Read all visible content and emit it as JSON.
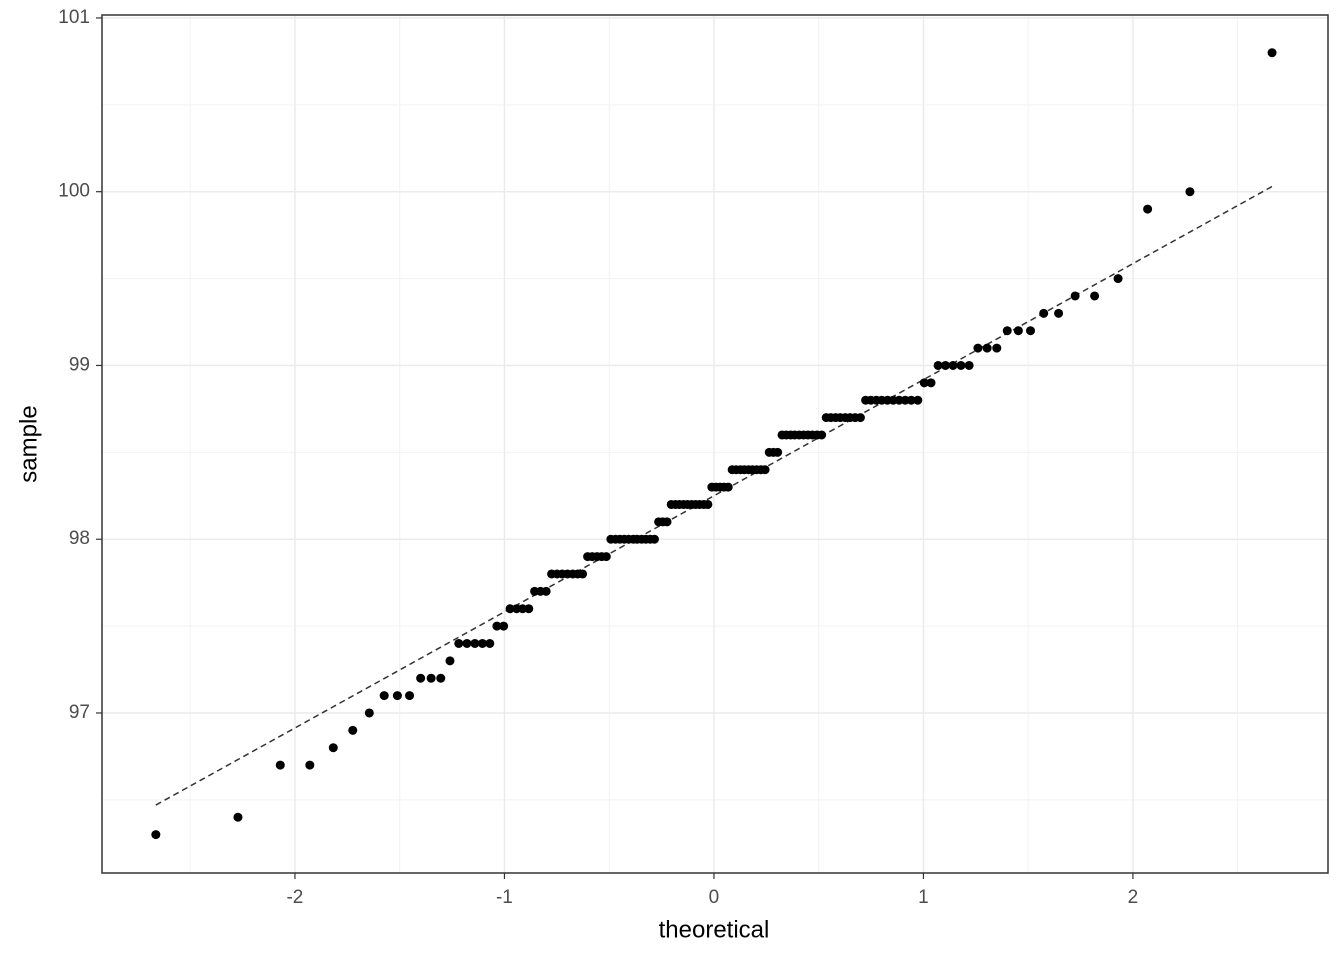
{
  "chart_data": {
    "type": "scatter",
    "x_label": "theoretical",
    "y_label": "sample",
    "x": [
      -2.664,
      -2.272,
      -2.07,
      -1.929,
      -1.817,
      -1.724,
      -1.645,
      -1.574,
      -1.511,
      -1.453,
      -1.4,
      -1.35,
      -1.304,
      -1.26,
      -1.218,
      -1.179,
      -1.141,
      -1.105,
      -1.07,
      -1.036,
      -1.004,
      -0.973,
      -0.942,
      -0.913,
      -0.884,
      -0.856,
      -0.828,
      -0.801,
      -0.775,
      -0.749,
      -0.724,
      -0.699,
      -0.674,
      -0.65,
      -0.627,
      -0.603,
      -0.581,
      -0.558,
      -0.536,
      -0.514,
      -0.492,
      -0.47,
      -0.449,
      -0.428,
      -0.407,
      -0.385,
      -0.366,
      -0.345,
      -0.325,
      -0.304,
      -0.284,
      -0.264,
      -0.244,
      -0.224,
      -0.204,
      -0.184,
      -0.165,
      -0.145,
      -0.126,
      -0.106,
      -0.087,
      -0.068,
      -0.048,
      -0.029,
      -0.01,
      0.01,
      0.029,
      0.048,
      0.068,
      0.087,
      0.106,
      0.126,
      0.145,
      0.165,
      0.184,
      0.204,
      0.224,
      0.244,
      0.264,
      0.284,
      0.304,
      0.325,
      0.345,
      0.366,
      0.385,
      0.407,
      0.428,
      0.449,
      0.47,
      0.492,
      0.514,
      0.536,
      0.558,
      0.581,
      0.603,
      0.627,
      0.65,
      0.674,
      0.699,
      0.724,
      0.749,
      0.775,
      0.801,
      0.828,
      0.856,
      0.884,
      0.913,
      0.942,
      0.973,
      1.004,
      1.036,
      1.07,
      1.105,
      1.141,
      1.179,
      1.218,
      1.26,
      1.304,
      1.35,
      1.4,
      1.453,
      1.511,
      1.574,
      1.645,
      1.724,
      1.817,
      1.929,
      2.07,
      2.272,
      2.664
    ],
    "y": [
      96.3,
      96.4,
      96.7,
      96.7,
      96.8,
      96.9,
      97.0,
      97.1,
      97.1,
      97.1,
      97.2,
      97.2,
      97.2,
      97.3,
      97.4,
      97.4,
      97.4,
      97.4,
      97.4,
      97.5,
      97.5,
      97.6,
      97.6,
      97.6,
      97.6,
      97.7,
      97.7,
      97.7,
      97.8,
      97.8,
      97.8,
      97.8,
      97.8,
      97.8,
      97.8,
      97.9,
      97.9,
      97.9,
      97.9,
      97.9,
      98.0,
      98.0,
      98.0,
      98.0,
      98.0,
      98.0,
      98.0,
      98.0,
      98.0,
      98.0,
      98.0,
      98.1,
      98.1,
      98.1,
      98.2,
      98.2,
      98.2,
      98.2,
      98.2,
      98.2,
      98.2,
      98.2,
      98.2,
      98.2,
      98.3,
      98.3,
      98.3,
      98.3,
      98.3,
      98.4,
      98.4,
      98.4,
      98.4,
      98.4,
      98.4,
      98.4,
      98.4,
      98.4,
      98.5,
      98.5,
      98.5,
      98.6,
      98.6,
      98.6,
      98.6,
      98.6,
      98.6,
      98.6,
      98.6,
      98.6,
      98.6,
      98.7,
      98.7,
      98.7,
      98.7,
      98.7,
      98.7,
      98.7,
      98.7,
      98.8,
      98.8,
      98.8,
      98.8,
      98.8,
      98.8,
      98.8,
      98.8,
      98.8,
      98.8,
      98.9,
      98.9,
      99.0,
      99.0,
      99.0,
      99.0,
      99.0,
      99.1,
      99.1,
      99.1,
      99.2,
      99.2,
      99.2,
      99.3,
      99.3,
      99.4,
      99.4,
      99.5,
      99.9,
      100.0,
      100.8
    ],
    "color": "#000000",
    "reference_line": {
      "x": [
        -2.664,
        2.664
      ],
      "y": [
        96.47,
        100.03
      ],
      "color": "#333333"
    },
    "xlim": [
      -2.921,
      2.931
    ],
    "ylim": [
      96.079,
      101.017
    ],
    "xticks": [
      -2,
      -1,
      0,
      1,
      2
    ],
    "yticks": [
      97,
      98,
      99,
      100,
      101
    ],
    "x_minor_ticks": [
      -2.5,
      -1.5,
      -0.5,
      0.5,
      1.5,
      2.5
    ],
    "y_minor_ticks": [
      96.5,
      97.5,
      98.5,
      99.5,
      100.5
    ],
    "grid": true
  }
}
